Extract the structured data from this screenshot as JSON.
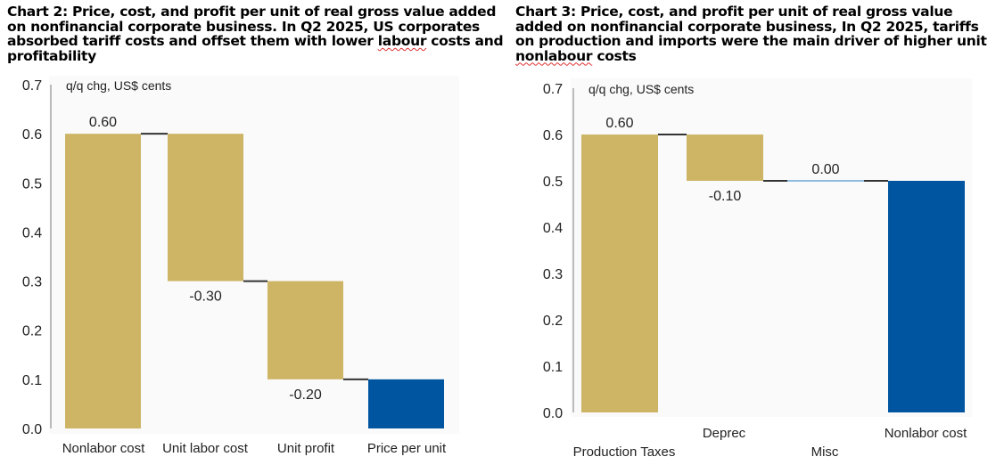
{
  "chart_data": [
    {
      "type": "waterfall",
      "title_main": "Chart 2: Price, cost, and profit per unit of real gross value added on nonfinancial corporate business. In Q2 2025, US corporates absorbed tariff costs and offset them with lower",
      "title_tail_underlined": "labour",
      "title_tail": " costs and profitability",
      "ylabel": "q/q chg, US$ cents",
      "ylim": [
        0,
        0.7
      ],
      "yticks": [
        "0.0",
        "0.1",
        "0.2",
        "0.3",
        "0.4",
        "0.5",
        "0.6",
        "0.7"
      ],
      "categories": [
        "Nonlabor cost",
        "Unit labor cost",
        "Unit profit",
        "Price per unit"
      ],
      "bars": [
        {
          "start": 0,
          "end": 0.6,
          "label": "0.60",
          "kind": "gold"
        },
        {
          "start": 0.6,
          "end": 0.3,
          "label": "-0.30",
          "kind": "gold"
        },
        {
          "start": 0.3,
          "end": 0.1,
          "label": "-0.20",
          "kind": "gold"
        },
        {
          "start": 0,
          "end": 0.1,
          "label": "",
          "kind": "blue"
        }
      ]
    },
    {
      "type": "waterfall",
      "title_main": "Chart 3: Price, cost, and profit per unit of real gross value added on nonfinancial corporate business, In Q2 2025, tariffs on production and imports were the main driver of higher unit",
      "title_tail_underlined": "nonlabour",
      "title_tail": " costs",
      "ylabel": "q/q chg, US$ cents",
      "ylim": [
        0,
        0.7
      ],
      "yticks": [
        "0.0",
        "0.1",
        "0.2",
        "0.3",
        "0.4",
        "0.5",
        "0.6",
        "0.7"
      ],
      "categories": [
        "Production Taxes",
        "Deprec",
        "Misc",
        "Nonlabor cost"
      ],
      "bars": [
        {
          "start": 0,
          "end": 0.6,
          "label": "0.60",
          "kind": "gold"
        },
        {
          "start": 0.6,
          "end": 0.5,
          "label": "-0.10",
          "kind": "gold"
        },
        {
          "start": 0.5,
          "end": 0.5,
          "label": "0.00",
          "kind": "line"
        },
        {
          "start": 0,
          "end": 0.5,
          "label": "",
          "kind": "blue"
        }
      ]
    }
  ],
  "colors": {
    "gold": "#cdb565",
    "blue": "#0055a0",
    "connector": "#333333",
    "axis": "#bbbbbb"
  }
}
